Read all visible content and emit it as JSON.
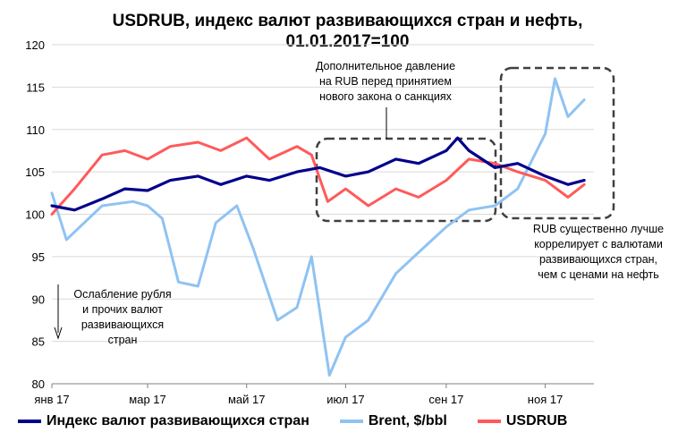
{
  "title_line1": "USDRUB, индекс валют развивающихся стран и нефть,",
  "title_line2": "01.01.2017=100",
  "annotations": {
    "pressure": [
      "Дополнительное давление",
      "на RUB перед принятием",
      "нового закона о санкциях"
    ],
    "correlation": [
      "RUB существенно лучше",
      "коррелирует с валютами",
      "развивающихся  стран,",
      "чем с ценами на нефть"
    ],
    "weakening": [
      "Ослабление рубля",
      "и прочих валют",
      "развивающихся",
      "стран"
    ]
  },
  "colors": {
    "em_index": "#00008b",
    "brent": "#8fc3f2",
    "usdrub": "#ff5a5a",
    "grid": "#d9d9d9",
    "box": "#404040"
  },
  "chart_data": {
    "type": "line",
    "title": "USDRUB, индекс валют развивающихся стран и нефть, 01.01.2017=100",
    "xlabel": "",
    "ylabel": "",
    "ylim": [
      80,
      120
    ],
    "yticks": [
      80,
      85,
      90,
      95,
      100,
      105,
      110,
      115,
      120
    ],
    "xlim": [
      "2017-01-01",
      "2017-12-01"
    ],
    "xticks": [
      {
        "label": "янв 17",
        "date": "2017-01-01"
      },
      {
        "label": "мар 17",
        "date": "2017-03-01"
      },
      {
        "label": "май 17",
        "date": "2017-05-01"
      },
      {
        "label": "июл 17",
        "date": "2017-07-01"
      },
      {
        "label": "сен 17",
        "date": "2017-09-01"
      },
      {
        "label": "ноя 17",
        "date": "2017-11-01"
      }
    ],
    "grid": "horizontal",
    "legend": "bottom",
    "series": [
      {
        "name": "Индекс валют развивающихся стран",
        "x": [
          "2017-01-01",
          "2017-01-15",
          "2017-02-01",
          "2017-02-15",
          "2017-03-01",
          "2017-03-15",
          "2017-04-01",
          "2017-04-15",
          "2017-05-01",
          "2017-05-15",
          "2017-06-01",
          "2017-06-15",
          "2017-07-01",
          "2017-07-15",
          "2017-08-01",
          "2017-08-15",
          "2017-09-01",
          "2017-09-08",
          "2017-09-15",
          "2017-10-01",
          "2017-10-15",
          "2017-11-01",
          "2017-11-15",
          "2017-11-25"
        ],
        "values": [
          101,
          100.5,
          101.8,
          103,
          102.8,
          104,
          104.5,
          103.5,
          104.5,
          104,
          105,
          105.5,
          104.5,
          105,
          106.5,
          106,
          107.5,
          109,
          107.5,
          105.5,
          106,
          104.5,
          103.5,
          104
        ]
      },
      {
        "name": "Brent, $/bbl",
        "x": [
          "2017-01-01",
          "2017-01-10",
          "2017-02-01",
          "2017-02-20",
          "2017-03-01",
          "2017-03-10",
          "2017-03-20",
          "2017-04-01",
          "2017-04-12",
          "2017-04-25",
          "2017-05-05",
          "2017-05-20",
          "2017-06-01",
          "2017-06-10",
          "2017-06-21",
          "2017-07-01",
          "2017-07-15",
          "2017-08-01",
          "2017-08-15",
          "2017-09-01",
          "2017-09-15",
          "2017-10-01",
          "2017-10-15",
          "2017-11-01",
          "2017-11-07",
          "2017-11-15",
          "2017-11-25"
        ],
        "values": [
          102.5,
          97,
          101,
          101.5,
          101,
          99.5,
          92,
          91.5,
          99,
          101,
          96,
          87.5,
          89,
          95,
          81,
          85.5,
          87.5,
          93,
          95.5,
          98.5,
          100.5,
          101,
          103,
          109.5,
          116,
          111.5,
          113.5
        ]
      },
      {
        "name": "USDRUB",
        "x": [
          "2017-01-01",
          "2017-01-15",
          "2017-02-01",
          "2017-02-15",
          "2017-03-01",
          "2017-03-15",
          "2017-04-01",
          "2017-04-15",
          "2017-05-01",
          "2017-05-15",
          "2017-06-01",
          "2017-06-10",
          "2017-06-20",
          "2017-07-01",
          "2017-07-15",
          "2017-08-01",
          "2017-08-15",
          "2017-09-01",
          "2017-09-15",
          "2017-10-01",
          "2017-10-15",
          "2017-11-01",
          "2017-11-15",
          "2017-11-25"
        ],
        "values": [
          100,
          103,
          107,
          107.5,
          106.5,
          108,
          108.5,
          107.5,
          109,
          106.5,
          108,
          107,
          101.5,
          103,
          101,
          103,
          102,
          104,
          106.5,
          106,
          105,
          104,
          102,
          103.5
        ]
      }
    ]
  }
}
